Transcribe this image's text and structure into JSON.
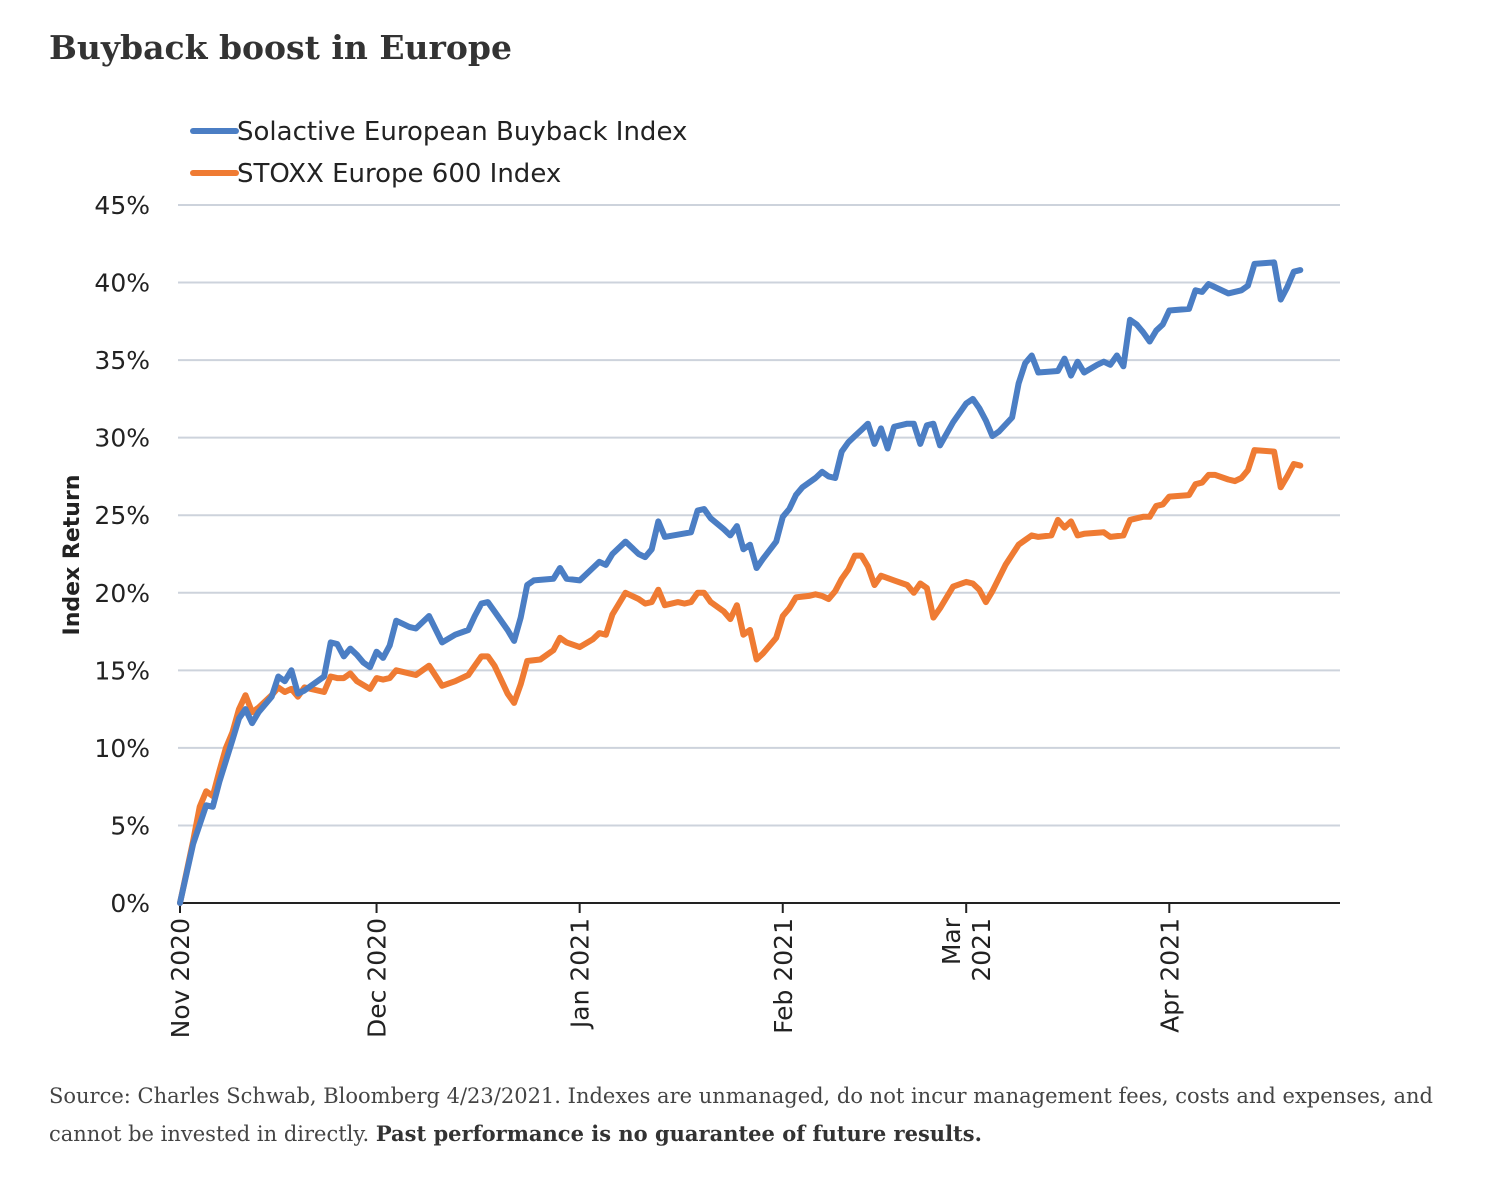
{
  "title": "Buyback boost in Europe",
  "source_note": "Source: Charles Schwab, Bloomberg 4/23/2021. Indexes are unmanaged, do not incur management fees, costs and expenses, and cannot be invested in directly.",
  "source_emphasis": "Past performance is no guarantee of future results.",
  "colors": {
    "series_1": "#4b7ec4",
    "series_2": "#ef7b33",
    "grid": "#cdd3dc",
    "axis": "#222222"
  },
  "chart_data": {
    "type": "line",
    "title": "",
    "xlabel": "",
    "ylabel": "Index Return",
    "ylim": [
      0,
      45
    ],
    "xlim": [
      0,
      174
    ],
    "y_ticks": [
      {
        "value": 0,
        "label": "0%"
      },
      {
        "value": 5,
        "label": "5%"
      },
      {
        "value": 10,
        "label": "10%"
      },
      {
        "value": 15,
        "label": "15%"
      },
      {
        "value": 20,
        "label": "20%"
      },
      {
        "value": 25,
        "label": "25%"
      },
      {
        "value": 30,
        "label": "30%"
      },
      {
        "value": 35,
        "label": "35%"
      },
      {
        "value": 40,
        "label": "40%"
      },
      {
        "value": 45,
        "label": "45%"
      }
    ],
    "x_ticks": [
      {
        "day": 0,
        "lines": [
          "Nov 2020"
        ]
      },
      {
        "day": 30,
        "lines": [
          "Dec 2020"
        ]
      },
      {
        "day": 61,
        "lines": [
          "Jan 2021"
        ]
      },
      {
        "day": 92,
        "lines": [
          "Feb 2021"
        ]
      },
      {
        "day": 120,
        "lines": [
          "Mar",
          "2021"
        ]
      },
      {
        "day": 151,
        "lines": [
          "Apr 2021"
        ]
      }
    ],
    "legend": [
      "Solactive European Buyback Index",
      "STOXX Europe 600 Index"
    ],
    "legend_position": "top-left",
    "grid": true,
    "series": [
      {
        "name": "Solactive European Buyback Index",
        "points": [
          [
            0,
            0
          ],
          [
            2,
            3.8
          ],
          [
            4,
            6.3
          ],
          [
            5,
            6.2
          ],
          [
            6,
            7.8
          ],
          [
            8,
            10.5
          ],
          [
            9,
            11.9
          ],
          [
            10,
            12.5
          ],
          [
            11,
            11.6
          ],
          [
            12,
            12.3
          ],
          [
            14,
            13.3
          ],
          [
            15,
            14.6
          ],
          [
            16,
            14.3
          ],
          [
            17,
            15
          ],
          [
            18,
            13.5
          ],
          [
            19,
            13.7
          ],
          [
            20,
            14
          ],
          [
            22,
            14.6
          ],
          [
            23,
            16.8
          ],
          [
            24,
            16.7
          ],
          [
            25,
            15.9
          ],
          [
            26,
            16.4
          ],
          [
            27,
            16
          ],
          [
            28,
            15.5
          ],
          [
            29,
            15.2
          ],
          [
            30,
            16.2
          ],
          [
            31,
            15.8
          ],
          [
            32,
            16.6
          ],
          [
            33,
            18.2
          ],
          [
            34,
            18
          ],
          [
            35,
            17.8
          ],
          [
            36,
            17.7
          ],
          [
            38,
            18.5
          ],
          [
            40,
            16.8
          ],
          [
            42,
            17.3
          ],
          [
            44,
            17.6
          ],
          [
            45,
            18.5
          ],
          [
            46,
            19.3
          ],
          [
            47,
            19.4
          ],
          [
            48,
            18.8
          ],
          [
            50,
            17.6
          ],
          [
            51,
            16.9
          ],
          [
            52,
            18.4
          ],
          [
            53,
            20.5
          ],
          [
            54,
            20.8
          ],
          [
            57,
            20.9
          ],
          [
            58,
            21.6
          ],
          [
            59,
            20.9
          ],
          [
            61,
            20.8
          ],
          [
            63,
            21.6
          ],
          [
            64,
            22
          ],
          [
            65,
            21.8
          ],
          [
            66,
            22.5
          ],
          [
            68,
            23.3
          ],
          [
            70,
            22.5
          ],
          [
            71,
            22.3
          ],
          [
            72,
            22.8
          ],
          [
            73,
            24.6
          ],
          [
            74,
            23.6
          ],
          [
            78,
            23.9
          ],
          [
            79,
            25.3
          ],
          [
            80,
            25.4
          ],
          [
            81,
            24.8
          ],
          [
            83,
            24.1
          ],
          [
            84,
            23.7
          ],
          [
            85,
            24.3
          ],
          [
            86,
            22.8
          ],
          [
            87,
            23.1
          ],
          [
            88,
            21.6
          ],
          [
            89,
            22.2
          ],
          [
            91,
            23.3
          ],
          [
            92,
            24.9
          ],
          [
            93,
            25.4
          ],
          [
            94,
            26.3
          ],
          [
            95,
            26.8
          ],
          [
            97,
            27.4
          ],
          [
            98,
            27.8
          ],
          [
            99,
            27.5
          ],
          [
            100,
            27.4
          ],
          [
            101,
            29.1
          ],
          [
            102,
            29.7
          ],
          [
            103,
            30.1
          ],
          [
            104,
            30.5
          ],
          [
            105,
            30.9
          ],
          [
            106,
            29.6
          ],
          [
            107,
            30.6
          ],
          [
            108,
            29.3
          ],
          [
            109,
            30.7
          ],
          [
            111,
            30.9
          ],
          [
            112,
            30.9
          ],
          [
            113,
            29.6
          ],
          [
            114,
            30.8
          ],
          [
            115,
            30.9
          ],
          [
            116,
            29.5
          ],
          [
            118,
            31
          ],
          [
            120,
            32.2
          ],
          [
            121,
            32.5
          ],
          [
            122,
            31.9
          ],
          [
            123,
            31.1
          ],
          [
            124,
            30.1
          ],
          [
            125,
            30.4
          ],
          [
            127,
            31.3
          ],
          [
            128,
            33.5
          ],
          [
            129,
            34.8
          ],
          [
            130,
            35.3
          ],
          [
            131,
            34.2
          ],
          [
            134,
            34.3
          ],
          [
            135,
            35.1
          ],
          [
            136,
            34
          ],
          [
            137,
            34.9
          ],
          [
            138,
            34.2
          ],
          [
            140,
            34.7
          ],
          [
            141,
            34.9
          ],
          [
            142,
            34.7
          ],
          [
            143,
            35.3
          ],
          [
            144,
            34.6
          ],
          [
            145,
            37.6
          ],
          [
            146,
            37.3
          ],
          [
            147,
            36.8
          ],
          [
            148,
            36.2
          ],
          [
            149,
            36.9
          ],
          [
            150,
            37.3
          ],
          [
            151,
            38.2
          ],
          [
            154,
            38.3
          ],
          [
            155,
            39.5
          ],
          [
            156,
            39.4
          ],
          [
            157,
            39.9
          ],
          [
            160,
            39.3
          ],
          [
            162,
            39.5
          ],
          [
            163,
            39.8
          ],
          [
            164,
            41.2
          ],
          [
            167,
            41.3
          ],
          [
            168,
            38.9
          ],
          [
            169,
            39.7
          ],
          [
            170,
            40.7
          ],
          [
            171,
            40.8
          ]
        ]
      },
      {
        "name": "STOXX Europe 600 Index",
        "points": [
          [
            0,
            0
          ],
          [
            2,
            4
          ],
          [
            3,
            6.2
          ],
          [
            4,
            7.2
          ],
          [
            5,
            6.9
          ],
          [
            6,
            8.5
          ],
          [
            7,
            10
          ],
          [
            8,
            11
          ],
          [
            9,
            12.5
          ],
          [
            10,
            13.4
          ],
          [
            11,
            12.3
          ],
          [
            12,
            12.6
          ],
          [
            14,
            13.4
          ],
          [
            15,
            13.9
          ],
          [
            16,
            13.6
          ],
          [
            17,
            13.8
          ],
          [
            18,
            13.3
          ],
          [
            19,
            13.9
          ],
          [
            22,
            13.6
          ],
          [
            23,
            14.6
          ],
          [
            24,
            14.5
          ],
          [
            25,
            14.5
          ],
          [
            26,
            14.8
          ],
          [
            27,
            14.3
          ],
          [
            29,
            13.8
          ],
          [
            30,
            14.5
          ],
          [
            31,
            14.4
          ],
          [
            32,
            14.5
          ],
          [
            33,
            15
          ],
          [
            35,
            14.8
          ],
          [
            36,
            14.7
          ],
          [
            38,
            15.3
          ],
          [
            40,
            14
          ],
          [
            42,
            14.3
          ],
          [
            44,
            14.7
          ],
          [
            45,
            15.3
          ],
          [
            46,
            15.9
          ],
          [
            47,
            15.9
          ],
          [
            48,
            15.3
          ],
          [
            50,
            13.5
          ],
          [
            51,
            12.9
          ],
          [
            52,
            14.1
          ],
          [
            53,
            15.6
          ],
          [
            55,
            15.7
          ],
          [
            57,
            16.3
          ],
          [
            58,
            17.1
          ],
          [
            59,
            16.8
          ],
          [
            61,
            16.5
          ],
          [
            63,
            17
          ],
          [
            64,
            17.4
          ],
          [
            65,
            17.3
          ],
          [
            66,
            18.6
          ],
          [
            68,
            20
          ],
          [
            70,
            19.6
          ],
          [
            71,
            19.3
          ],
          [
            72,
            19.4
          ],
          [
            73,
            20.2
          ],
          [
            74,
            19.2
          ],
          [
            76,
            19.4
          ],
          [
            77,
            19.3
          ],
          [
            78,
            19.4
          ],
          [
            79,
            20
          ],
          [
            80,
            20
          ],
          [
            81,
            19.4
          ],
          [
            83,
            18.8
          ],
          [
            84,
            18.3
          ],
          [
            85,
            19.2
          ],
          [
            86,
            17.3
          ],
          [
            87,
            17.6
          ],
          [
            88,
            15.7
          ],
          [
            89,
            16.1
          ],
          [
            91,
            17.1
          ],
          [
            92,
            18.5
          ],
          [
            93,
            19
          ],
          [
            94,
            19.7
          ],
          [
            96,
            19.8
          ],
          [
            97,
            19.9
          ],
          [
            98,
            19.8
          ],
          [
            99,
            19.6
          ],
          [
            100,
            20.1
          ],
          [
            101,
            20.9
          ],
          [
            102,
            21.5
          ],
          [
            103,
            22.4
          ],
          [
            104,
            22.4
          ],
          [
            105,
            21.7
          ],
          [
            106,
            20.5
          ],
          [
            107,
            21.1
          ],
          [
            109,
            20.8
          ],
          [
            111,
            20.5
          ],
          [
            112,
            20
          ],
          [
            113,
            20.6
          ],
          [
            114,
            20.3
          ],
          [
            115,
            18.4
          ],
          [
            116,
            19
          ],
          [
            118,
            20.4
          ],
          [
            120,
            20.7
          ],
          [
            121,
            20.6
          ],
          [
            122,
            20.2
          ],
          [
            123,
            19.4
          ],
          [
            124,
            20.1
          ],
          [
            126,
            21.8
          ],
          [
            128,
            23.1
          ],
          [
            129,
            23.4
          ],
          [
            130,
            23.7
          ],
          [
            131,
            23.6
          ],
          [
            133,
            23.7
          ],
          [
            134,
            24.7
          ],
          [
            135,
            24.2
          ],
          [
            136,
            24.6
          ],
          [
            137,
            23.7
          ],
          [
            138,
            23.8
          ],
          [
            141,
            23.9
          ],
          [
            142,
            23.6
          ],
          [
            144,
            23.7
          ],
          [
            145,
            24.7
          ],
          [
            146,
            24.8
          ],
          [
            147,
            24.9
          ],
          [
            148,
            24.9
          ],
          [
            149,
            25.6
          ],
          [
            150,
            25.7
          ],
          [
            151,
            26.2
          ],
          [
            154,
            26.3
          ],
          [
            155,
            27
          ],
          [
            156,
            27.1
          ],
          [
            157,
            27.6
          ],
          [
            158,
            27.6
          ],
          [
            160,
            27.3
          ],
          [
            161,
            27.2
          ],
          [
            162,
            27.4
          ],
          [
            163,
            27.9
          ],
          [
            164,
            29.2
          ],
          [
            167,
            29.1
          ],
          [
            168,
            26.8
          ],
          [
            169,
            27.5
          ],
          [
            170,
            28.3
          ],
          [
            171,
            28.2
          ]
        ]
      }
    ]
  }
}
